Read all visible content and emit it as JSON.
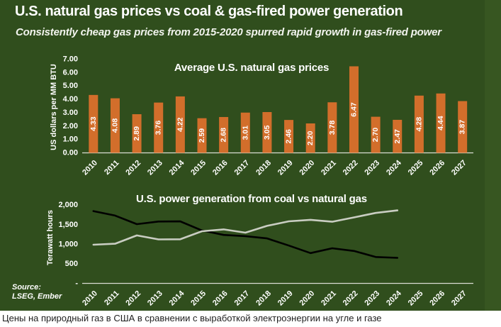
{
  "header": {
    "title": "U.S. natural gas prices vs coal & gas-fired power generation",
    "subtitle": "Consistently cheap gas prices from 2015-2020 spurred rapid growth in gas-fired power"
  },
  "source": {
    "label": "Source:",
    "orgs": "LSEG, Ember"
  },
  "caption": "Цены на природный газ в США в сравнении с выработкой электроэнергии на угле и газе",
  "colors": {
    "background_green": "#304e1d",
    "bar_orange": "#d26e2b",
    "coal_line": "#000000",
    "gas_line": "#c9cdc2",
    "axis_line": "#d9ddd3",
    "text_white": "#ffffff"
  },
  "chart_data": [
    {
      "type": "bar",
      "title": "Average U.S. natural gas prices",
      "ylabel": "US dollars per MM BTU",
      "categories": [
        "2010",
        "2011",
        "2012",
        "2013",
        "2014",
        "2015",
        "2016",
        "2017",
        "2018",
        "2019",
        "2020",
        "2021",
        "2022",
        "2023",
        "2024",
        "2025",
        "2026",
        "2027"
      ],
      "values": [
        4.33,
        4.08,
        2.89,
        3.76,
        4.22,
        2.59,
        2.68,
        3.01,
        3.05,
        2.46,
        2.2,
        3.78,
        6.47,
        2.7,
        2.47,
        4.28,
        4.44,
        3.87
      ],
      "bar_labels": [
        "4.33",
        "4.08",
        "2.89",
        "3.76",
        "4.22",
        "2.59",
        "2.68",
        "3.01",
        "3.05",
        "2.46",
        "2.20",
        "3.78",
        "6.47",
        "2.70",
        "2.47",
        "4.28",
        "4.44",
        "3.87"
      ],
      "ylim": [
        0,
        7
      ],
      "yticks": [
        {
          "label": "7.00",
          "value": 7
        },
        {
          "label": "6.00",
          "value": 6
        },
        {
          "label": "5.00",
          "value": 5
        },
        {
          "label": "4.00",
          "value": 4
        },
        {
          "label": "3.00",
          "value": 3
        },
        {
          "label": "2.00",
          "value": 2
        },
        {
          "label": "1.00",
          "value": 1
        },
        {
          "label": "0.00",
          "value": 0
        }
      ],
      "grid": false,
      "legend": "none"
    },
    {
      "type": "line",
      "title": "U.S. power generation from coal vs natural gas",
      "ylabel": "Terawatt hours",
      "categories": [
        "2010",
        "2011",
        "2012",
        "2013",
        "2014",
        "2015",
        "2016",
        "2017",
        "2018",
        "2019",
        "2020",
        "2021",
        "2022",
        "2023",
        "2024",
        "2025",
        "2026",
        "2027"
      ],
      "series": [
        {
          "name": "coal",
          "color": "#000000",
          "values": [
            1847,
            1733,
            1514,
            1581,
            1585,
            1352,
            1239,
            1207,
            1150,
            966,
            774,
            898,
            828,
            675,
            653
          ]
        },
        {
          "name": "natural gas",
          "color": "#c9cdc2",
          "values": [
            988,
            1013,
            1226,
            1124,
            1127,
            1333,
            1380,
            1296,
            1470,
            1586,
            1624,
            1576,
            1687,
            1800,
            1865
          ]
        }
      ],
      "ylim": [
        0,
        2000
      ],
      "yticks": [
        {
          "label": "2,000",
          "value": 2000
        },
        {
          "label": "1,500",
          "value": 1500
        },
        {
          "label": "1,000",
          "value": 1000
        },
        {
          "label": "500",
          "value": 500
        },
        {
          "label": "-",
          "value": 0
        }
      ],
      "grid": false,
      "legend": "none"
    }
  ]
}
